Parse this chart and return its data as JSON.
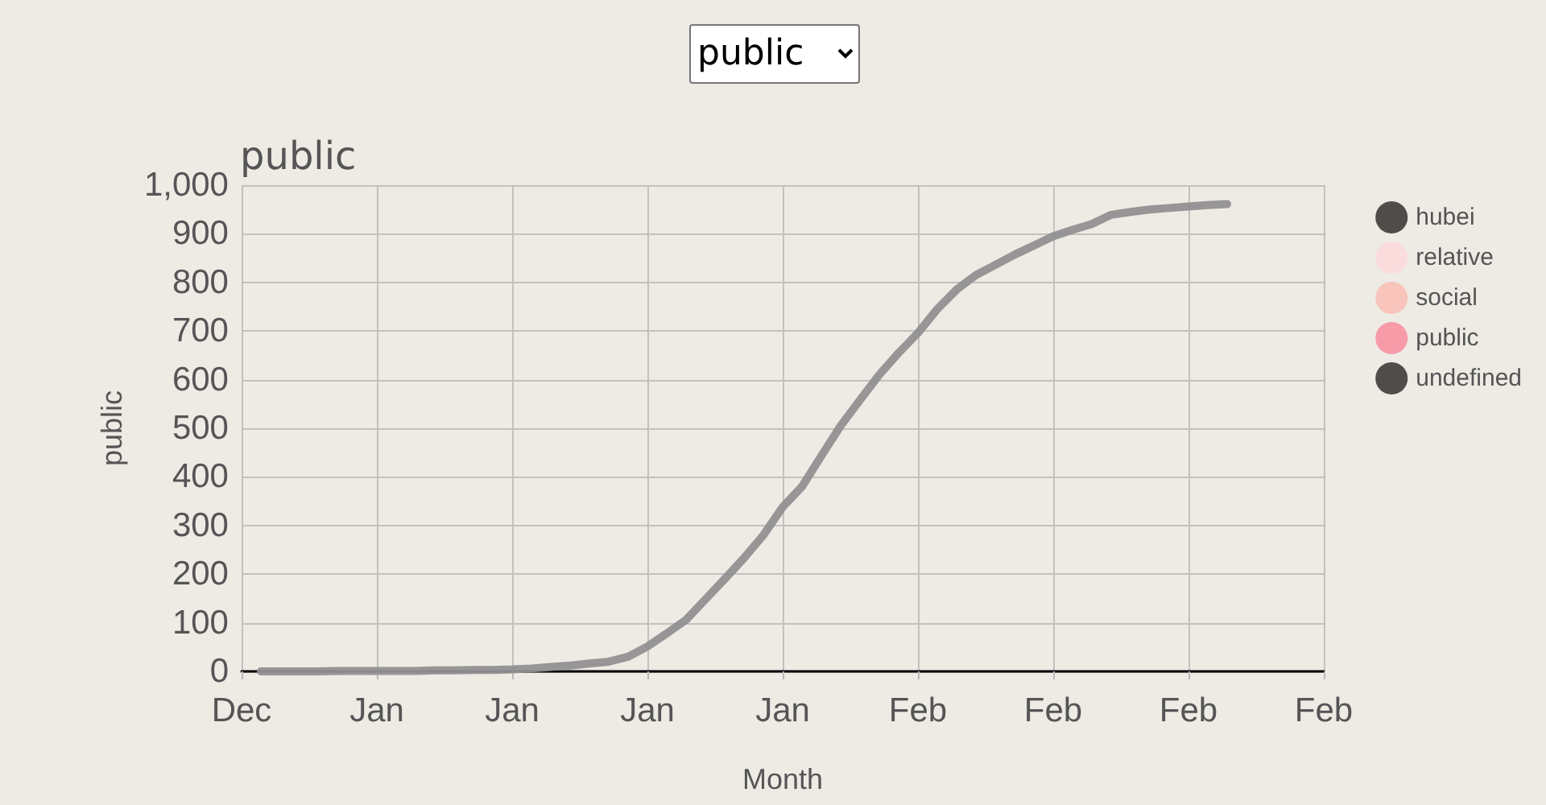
{
  "chart_data": {
    "type": "line",
    "title": "public",
    "xlabel": "Month",
    "ylabel": "public",
    "annotations": [
      "public"
    ],
    "categories": [
      "Dec",
      null,
      null,
      null,
      null,
      null,
      null,
      "Jan",
      null,
      null,
      null,
      null,
      null,
      null,
      "Jan",
      null,
      null,
      null,
      null,
      null,
      null,
      "Jan",
      null,
      null,
      null,
      null,
      null,
      null,
      "Jan",
      null,
      null,
      null,
      null,
      null,
      null,
      "Feb",
      null,
      null,
      null,
      null,
      null,
      null,
      "Feb",
      null,
      null,
      null,
      null,
      null,
      null,
      "Feb",
      null,
      null,
      null,
      null,
      null,
      null,
      "Feb"
    ],
    "series": [
      {
        "color": "#919090",
        "values": [
          null,
          0,
          0,
          0,
          0,
          1,
          1,
          1,
          1,
          1,
          2,
          2,
          3,
          3,
          4,
          6,
          9,
          12,
          16,
          20,
          30,
          51,
          78,
          106,
          148,
          190,
          233,
          280,
          338,
          380,
          443,
          505,
          558,
          610,
          655,
          696,
          745,
          785,
          815,
          836,
          857,
          876,
          895,
          908,
          920,
          939,
          945,
          950,
          953,
          956,
          959,
          961,
          null,
          null,
          null,
          null,
          null
        ]
      },
      {
        "name": "hubei",
        "color": "#4f4c49",
        "values": [
          null,
          null,
          null,
          null,
          null,
          null,
          null,
          null,
          null,
          null,
          null,
          null,
          null,
          null,
          null,
          null,
          null,
          null,
          null,
          null,
          null,
          null,
          null,
          null,
          null,
          null,
          null,
          null,
          null,
          null,
          null,
          null,
          null,
          null,
          null,
          null,
          null,
          null,
          null,
          null,
          null,
          null,
          null,
          null,
          null,
          null,
          null,
          null,
          null,
          null,
          null,
          null,
          null,
          null,
          null,
          null,
          null
        ]
      },
      {
        "name": "relative",
        "color": "#fbdcdc",
        "values": [
          null,
          null,
          null,
          null,
          null,
          null,
          null,
          null,
          null,
          null,
          null,
          null,
          null,
          null,
          null,
          null,
          null,
          null,
          null,
          null,
          null,
          null,
          null,
          null,
          null,
          null,
          null,
          null,
          null,
          null,
          null,
          null,
          null,
          null,
          null,
          null,
          null,
          null,
          null,
          null,
          null,
          null,
          null,
          null,
          null,
          null,
          null,
          null,
          null,
          null,
          null,
          null,
          null,
          null,
          null,
          null,
          null
        ]
      },
      {
        "name": "social",
        "color": "#f8c4bb",
        "values": [
          null,
          null,
          null,
          null,
          null,
          null,
          null,
          null,
          null,
          null,
          null,
          null,
          null,
          null,
          null,
          null,
          null,
          null,
          null,
          null,
          null,
          null,
          null,
          null,
          null,
          null,
          null,
          null,
          null,
          null,
          null,
          null,
          null,
          null,
          null,
          null,
          null,
          null,
          null,
          null,
          null,
          null,
          null,
          null,
          null,
          null,
          null,
          null,
          null,
          null,
          null,
          null,
          null,
          null,
          null,
          null,
          null
        ]
      },
      {
        "name": "public",
        "color": "#f79ba9",
        "values": [
          null,
          null,
          null,
          null,
          null,
          null,
          null,
          null,
          null,
          null,
          null,
          null,
          null,
          null,
          null,
          null,
          null,
          null,
          null,
          null,
          null,
          null,
          null,
          null,
          null,
          null,
          null,
          null,
          null,
          null,
          null,
          null,
          null,
          null,
          null,
          null,
          null,
          null,
          null,
          null,
          null,
          null,
          null,
          null,
          null,
          null,
          null,
          null,
          null,
          null,
          null,
          null,
          null,
          null,
          null,
          null,
          null
        ]
      },
      {
        "name": "undefined",
        "color": "#4f4c49",
        "values": [
          null,
          null,
          null,
          null,
          null,
          null,
          null,
          null,
          null,
          null,
          null,
          null,
          null,
          null,
          null,
          null,
          null,
          null,
          null,
          null,
          null,
          null,
          null,
          null,
          null,
          null,
          null,
          null,
          null,
          null,
          null,
          null,
          null,
          null,
          null,
          null,
          null,
          null,
          null,
          null,
          null,
          null,
          null,
          null,
          null,
          null,
          null,
          null,
          null,
          null,
          null,
          null,
          null,
          null,
          null,
          null,
          null
        ]
      }
    ],
    "ylim": [
      0,
      1000
    ],
    "yticks": [
      0,
      100,
      200,
      300,
      400,
      500,
      600,
      700,
      800,
      900,
      {
        "value": 1000,
        "label": "1,000"
      }
    ],
    "grid": true,
    "legend": "right",
    "marker": "none",
    "line_style": "solid"
  }
}
